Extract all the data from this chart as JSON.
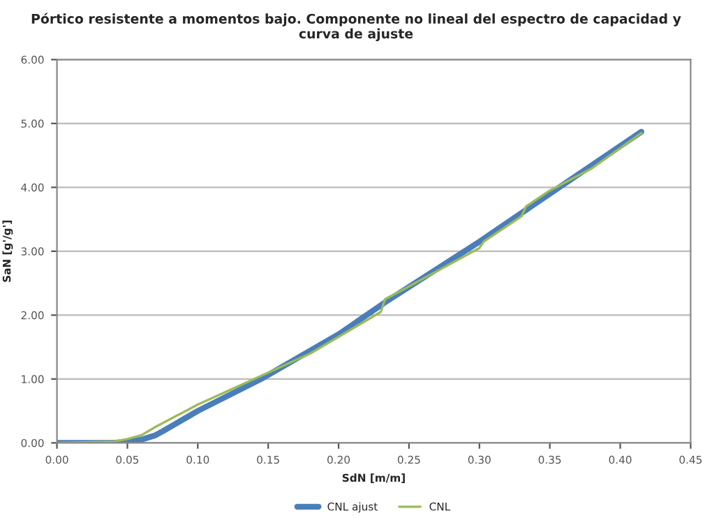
{
  "chart_data": {
    "type": "line",
    "title": "Pórtico resistente a momentos bajo. Componente no lineal del espectro de capacidad y\ncurva de ajuste",
    "xlabel": "SdN [m/m]",
    "ylabel": "SaN [g'/g']",
    "series": [
      {
        "name": "CNL ajust",
        "color": "#4a7ebb",
        "x": [
          0,
          0.04,
          0.05,
          0.06,
          0.07,
          0.075,
          0.1,
          0.145,
          0.2,
          0.233,
          0.3,
          0.35,
          0.415
        ],
        "values": [
          0,
          0,
          0.02,
          0.05,
          0.12,
          0.18,
          0.5,
          1.0,
          1.7,
          2.2,
          3.15,
          3.9,
          4.87
        ]
      },
      {
        "name": "CNL",
        "color": "#9bbb59",
        "x": [
          0,
          0.04,
          0.05,
          0.06,
          0.07,
          0.1,
          0.15,
          0.18,
          0.23,
          0.233,
          0.25,
          0.3,
          0.303,
          0.33,
          0.333,
          0.35,
          0.38,
          0.415
        ],
        "values": [
          0,
          0.02,
          0.06,
          0.12,
          0.25,
          0.6,
          1.1,
          1.4,
          2.05,
          2.25,
          2.45,
          3.05,
          3.15,
          3.55,
          3.7,
          3.95,
          4.3,
          4.85
        ]
      }
    ],
    "xlim": [
      0,
      0.45
    ],
    "xticks": [
      {
        "value": 0,
        "label": "0.00"
      },
      {
        "value": 0.05,
        "label": "0.05"
      },
      {
        "value": 0.1,
        "label": "0.10"
      },
      {
        "value": 0.15,
        "label": "0.15"
      },
      {
        "value": 0.2,
        "label": "0.20"
      },
      {
        "value": 0.25,
        "label": "0.25"
      },
      {
        "value": 0.3,
        "label": "0.30"
      },
      {
        "value": 0.35,
        "label": "0.35"
      },
      {
        "value": 0.4,
        "label": "0.40"
      },
      {
        "value": 0.45,
        "label": "0.45"
      }
    ],
    "ylim": [
      0,
      6
    ],
    "yticks": [
      {
        "value": 0,
        "label": "0.00"
      },
      {
        "value": 1,
        "label": "1.00"
      },
      {
        "value": 2,
        "label": "2.00"
      },
      {
        "value": 3,
        "label": "3.00"
      },
      {
        "value": 4,
        "label": "4.00"
      },
      {
        "value": 5,
        "label": "5.00"
      },
      {
        "value": 6,
        "label": "6.00"
      }
    ],
    "grid": "y",
    "legend": "bottom",
    "marker": "none",
    "line_style": "solid"
  }
}
